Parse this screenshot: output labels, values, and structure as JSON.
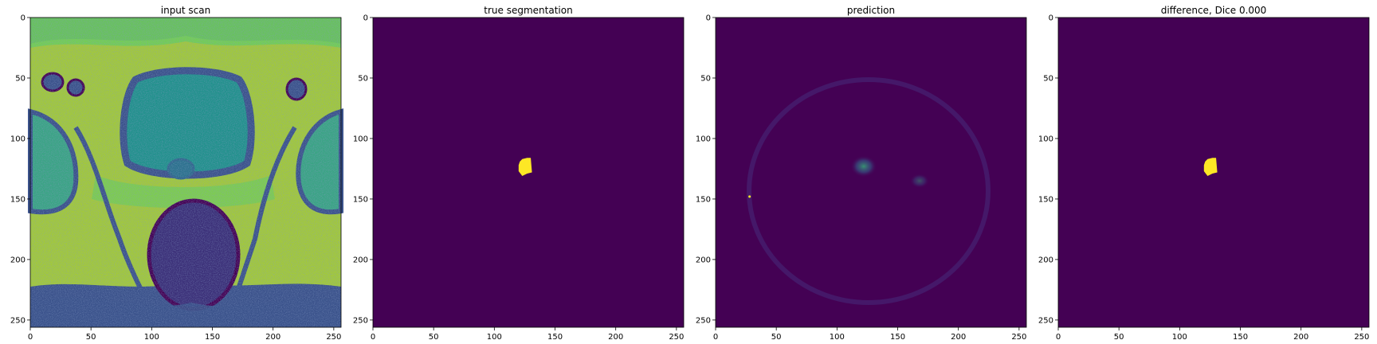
{
  "colors": {
    "viridis_dark": "#440154",
    "viridis_yellow": "#fde725",
    "background": "#ffffff"
  },
  "chart_data": [
    {
      "type": "heatmap",
      "title": "input scan",
      "xlim": [
        0,
        256
      ],
      "ylim": [
        256,
        0
      ],
      "x_ticks": [
        0,
        50,
        100,
        150,
        200,
        250
      ],
      "y_ticks": [
        0,
        50,
        100,
        150,
        200,
        250
      ],
      "colormap": "viridis",
      "content": "axial MRI slice"
    },
    {
      "type": "heatmap",
      "title": "true segmentation",
      "xlim": [
        0,
        256
      ],
      "ylim": [
        256,
        0
      ],
      "x_ticks": [
        0,
        50,
        100,
        150,
        200,
        250
      ],
      "y_ticks": [
        0,
        50,
        100,
        150,
        200,
        250
      ],
      "colormap": "viridis",
      "regions": [
        {
          "label": "segmentation mask",
          "value": 1,
          "polygon": [
            [
              121,
              119
            ],
            [
              123,
              117
            ],
            [
              127,
              116
            ],
            [
              130,
              116
            ],
            [
              131,
              128
            ],
            [
              127,
              129
            ],
            [
              123,
              131
            ],
            [
              120,
              127
            ],
            [
              120,
              122
            ]
          ]
        }
      ]
    },
    {
      "type": "heatmap",
      "title": "prediction",
      "xlim": [
        0,
        256
      ],
      "ylim": [
        256,
        0
      ],
      "x_ticks": [
        0,
        50,
        100,
        150,
        200,
        250
      ],
      "y_ticks": [
        0,
        50,
        100,
        150,
        200,
        250
      ],
      "colormap": "viridis",
      "hotspots": [
        {
          "x": 122,
          "y": 123,
          "rx": 11,
          "ry": 9,
          "intensity": 0.35
        },
        {
          "x": 168,
          "y": 135,
          "rx": 8,
          "ry": 6,
          "intensity": 0.2
        },
        {
          "x": 28,
          "y": 148,
          "rx": 1,
          "ry": 1,
          "intensity": 1.0
        }
      ]
    },
    {
      "type": "heatmap",
      "title": "difference, Dice 0.000",
      "xlim": [
        0,
        256
      ],
      "ylim": [
        256,
        0
      ],
      "x_ticks": [
        0,
        50,
        100,
        150,
        200,
        250
      ],
      "y_ticks": [
        0,
        50,
        100,
        150,
        200,
        250
      ],
      "colormap": "viridis",
      "regions": [
        {
          "label": "difference mask",
          "value": 1,
          "polygon": [
            [
              121,
              119
            ],
            [
              123,
              117
            ],
            [
              127,
              116
            ],
            [
              130,
              116
            ],
            [
              131,
              128
            ],
            [
              127,
              129
            ],
            [
              123,
              131
            ],
            [
              120,
              127
            ],
            [
              120,
              122
            ]
          ]
        }
      ]
    }
  ]
}
